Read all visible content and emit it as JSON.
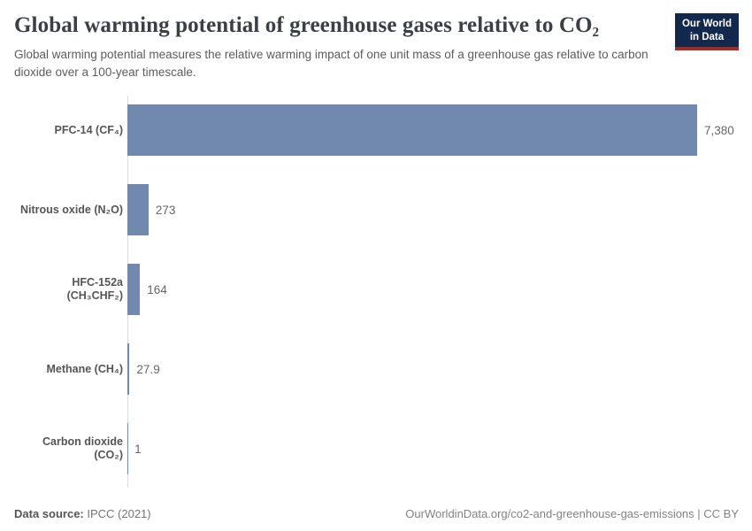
{
  "header": {
    "title": "Global warming potential of greenhouse gases relative to CO₂",
    "subtitle": "Global warming potential measures the relative warming impact of one unit mass of a greenhouse gas relative to carbon dioxide over a 100-year timescale.",
    "logo": {
      "line1": "Our World",
      "line2": "in Data"
    }
  },
  "chart_data": {
    "type": "bar",
    "orientation": "horizontal",
    "title": "Global warming potential of greenhouse gases relative to CO₂",
    "categories": [
      "PFC-14 (CF₄)",
      "Nitrous oxide (N₂O)",
      "HFC-152a (CH₃CHF₂)",
      "Methane (CH₄)",
      "Carbon dioxide (CO₂)"
    ],
    "values": [
      7380,
      273,
      164,
      27.9,
      1
    ],
    "value_labels": [
      "7,380",
      "273",
      "164",
      "27.9",
      "1"
    ],
    "xlim": [
      0,
      7380
    ],
    "grid": false,
    "legend": "none",
    "bar_color": "#7189ae"
  },
  "footer": {
    "source_label": "Data source:",
    "source_value": " IPCC (2021)",
    "attribution": "OurWorldinData.org/co2-and-greenhouse-gas-emissions | CC BY"
  },
  "colors": {
    "bar": "#7189ae",
    "axis_line": "#d9d9d9",
    "title_text": "#3b4045",
    "subtitle_text": "#5c5c5c",
    "logo_background": "#12294d",
    "logo_stripe": "#a32d26"
  }
}
